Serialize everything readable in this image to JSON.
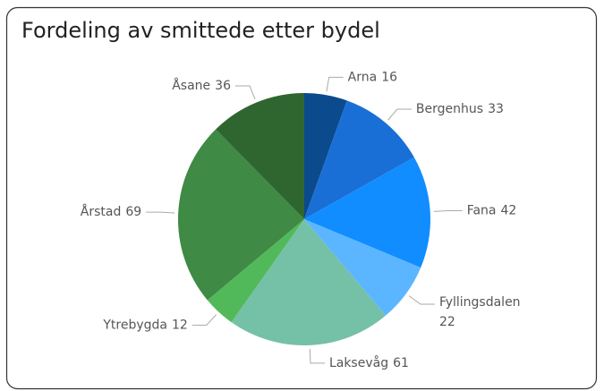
{
  "chart_data": {
    "type": "pie",
    "title": "Fordeling av smittede etter bydel",
    "categories": [
      "Arna",
      "Bergenhus",
      "Fana",
      "Fyllingsdalen",
      "Laksevåg",
      "Ytrebygda",
      "Årstad",
      "Åsane"
    ],
    "values": [
      16,
      33,
      42,
      22,
      61,
      12,
      69,
      36
    ],
    "colors": [
      "#0b4a8c",
      "#1a6fd6",
      "#118dff",
      "#5bb6ff",
      "#74c1a8",
      "#52b95a",
      "#3f8a45",
      "#2f6630"
    ]
  }
}
